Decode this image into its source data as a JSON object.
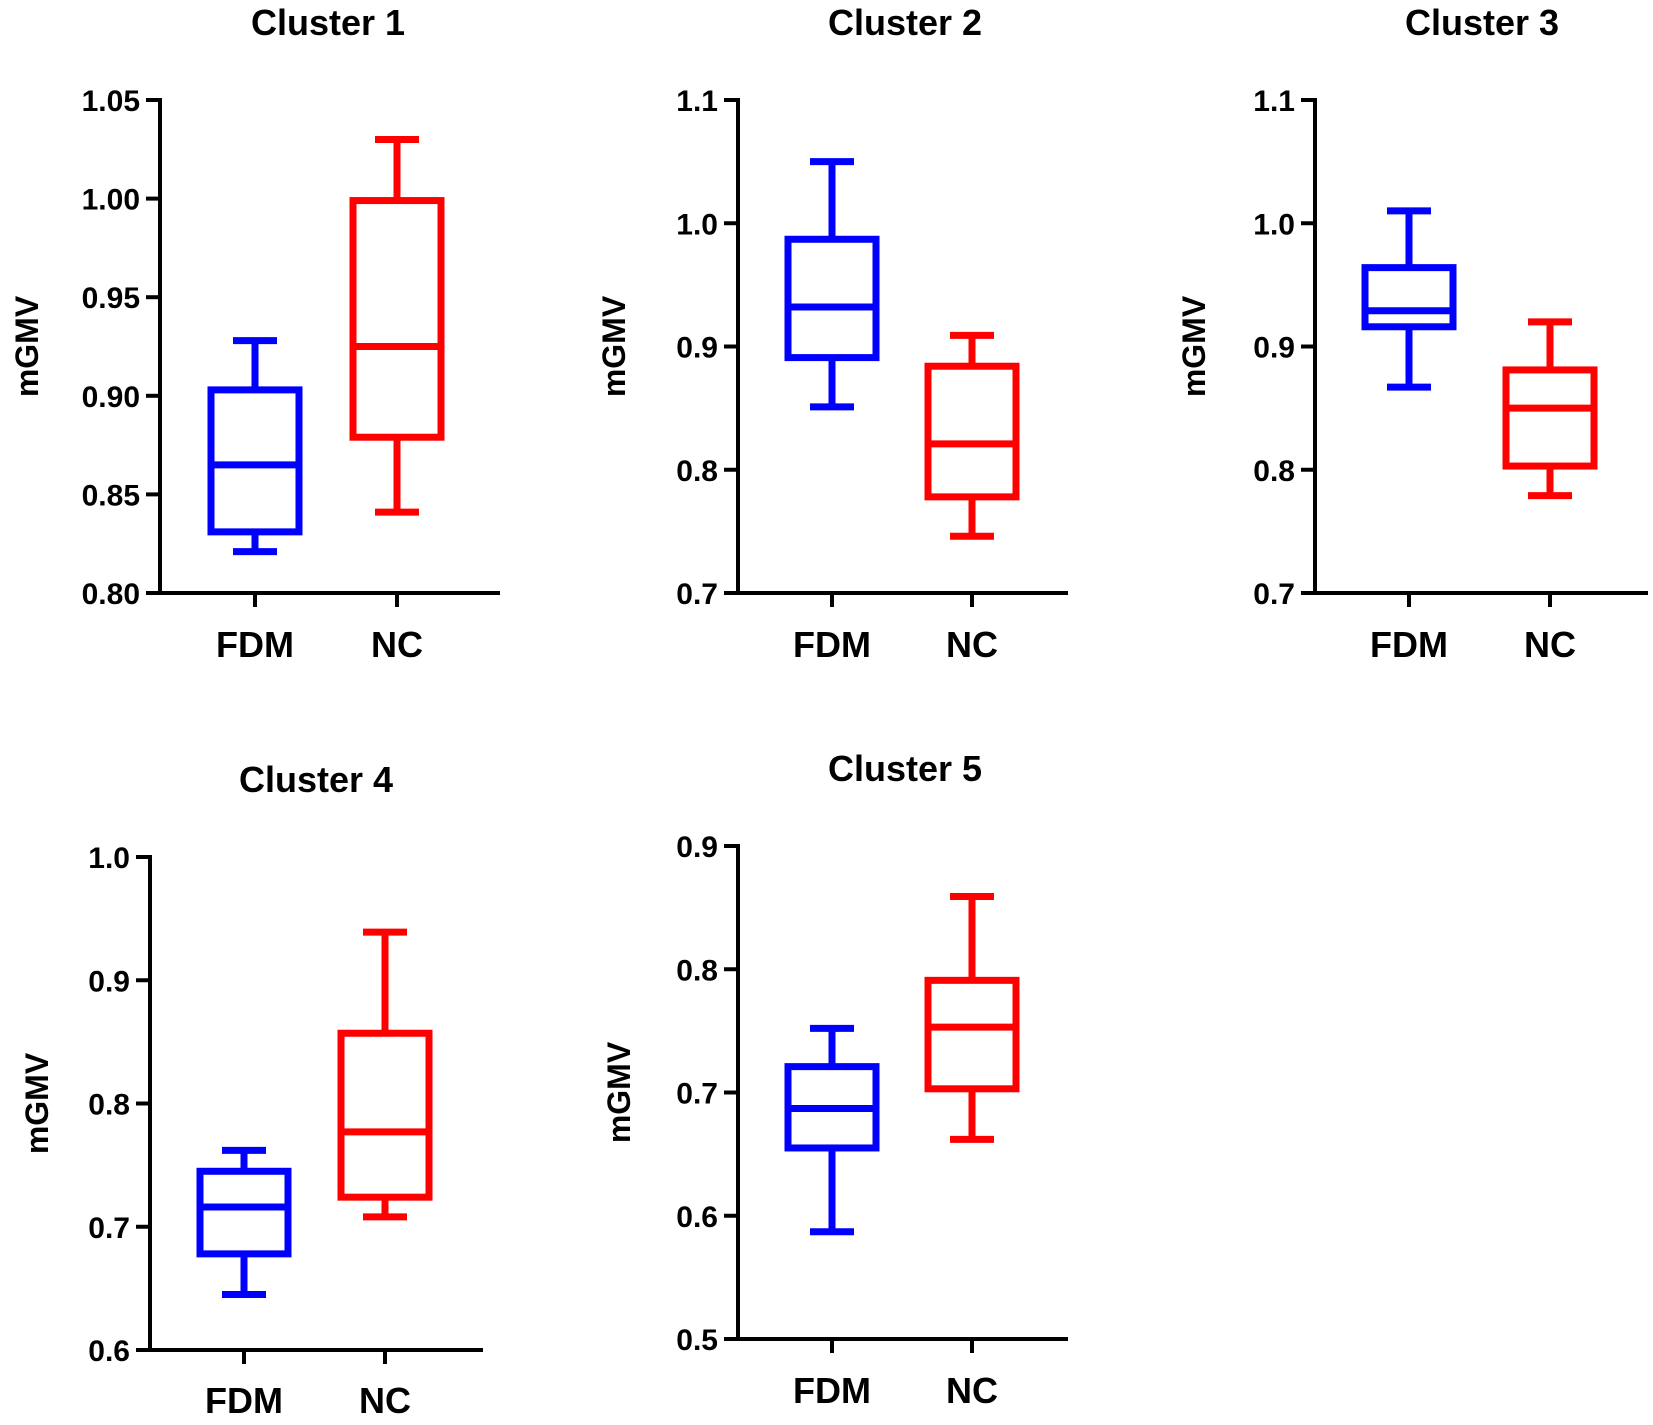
{
  "chart_data": [
    {
      "type": "boxplot",
      "title": "Cluster 1",
      "ylabel": "mGMV",
      "xlabel": "",
      "ylim": [
        0.8,
        1.05
      ],
      "yticks": [
        "0.80",
        "0.85",
        "0.90",
        "0.95",
        "1.00",
        "1.05"
      ],
      "categories": [
        "FDM",
        "NC"
      ],
      "series": [
        {
          "name": "FDM",
          "color": "#0000ff",
          "min": 0.821,
          "q1": 0.831,
          "median": 0.865,
          "q3": 0.903,
          "max": 0.928
        },
        {
          "name": "NC",
          "color": "#ff0000",
          "min": 0.841,
          "q1": 0.879,
          "median": 0.925,
          "q3": 0.999,
          "max": 1.03
        }
      ]
    },
    {
      "type": "boxplot",
      "title": "Cluster 2",
      "ylabel": "mGMV",
      "xlabel": "",
      "ylim": [
        0.7,
        1.1
      ],
      "yticks": [
        "0.7",
        "0.8",
        "0.9",
        "1.0",
        "1.1"
      ],
      "categories": [
        "FDM",
        "NC"
      ],
      "series": [
        {
          "name": "FDM",
          "color": "#0000ff",
          "min": 0.851,
          "q1": 0.891,
          "median": 0.932,
          "q3": 0.987,
          "max": 1.05
        },
        {
          "name": "NC",
          "color": "#ff0000",
          "min": 0.746,
          "q1": 0.778,
          "median": 0.821,
          "q3": 0.884,
          "max": 0.909
        }
      ]
    },
    {
      "type": "boxplot",
      "title": "Cluster 3",
      "ylabel": "mGMV",
      "xlabel": "",
      "ylim": [
        0.7,
        1.1
      ],
      "yticks": [
        "0.7",
        "0.8",
        "0.9",
        "1.0",
        "1.1"
      ],
      "categories": [
        "FDM",
        "NC"
      ],
      "series": [
        {
          "name": "FDM",
          "color": "#0000ff",
          "min": 0.867,
          "q1": 0.916,
          "median": 0.929,
          "q3": 0.964,
          "max": 1.01
        },
        {
          "name": "NC",
          "color": "#ff0000",
          "min": 0.779,
          "q1": 0.803,
          "median": 0.85,
          "q3": 0.881,
          "max": 0.92
        }
      ]
    },
    {
      "type": "boxplot",
      "title": "Cluster 4",
      "ylabel": "mGMV",
      "xlabel": "",
      "ylim": [
        0.6,
        1.0
      ],
      "yticks": [
        "0.6",
        "0.7",
        "0.8",
        "0.9",
        "1.0"
      ],
      "categories": [
        "FDM",
        "NC"
      ],
      "series": [
        {
          "name": "FDM",
          "color": "#0000ff",
          "min": 0.645,
          "q1": 0.678,
          "median": 0.716,
          "q3": 0.745,
          "max": 0.762
        },
        {
          "name": "NC",
          "color": "#ff0000",
          "min": 0.708,
          "q1": 0.724,
          "median": 0.777,
          "q3": 0.857,
          "max": 0.939
        }
      ]
    },
    {
      "type": "boxplot",
      "title": "Cluster 5",
      "ylabel": "mGMV",
      "xlabel": "",
      "ylim": [
        0.5,
        0.9
      ],
      "yticks": [
        "0.5",
        "0.6",
        "0.7",
        "0.8",
        "0.9"
      ],
      "categories": [
        "FDM",
        "NC"
      ],
      "series": [
        {
          "name": "FDM",
          "color": "#0000ff",
          "min": 0.587,
          "q1": 0.655,
          "median": 0.687,
          "q3": 0.721,
          "max": 0.752
        },
        {
          "name": "NC",
          "color": "#ff0000",
          "min": 0.662,
          "q1": 0.703,
          "median": 0.753,
          "q3": 0.791,
          "max": 0.859
        }
      ]
    }
  ]
}
